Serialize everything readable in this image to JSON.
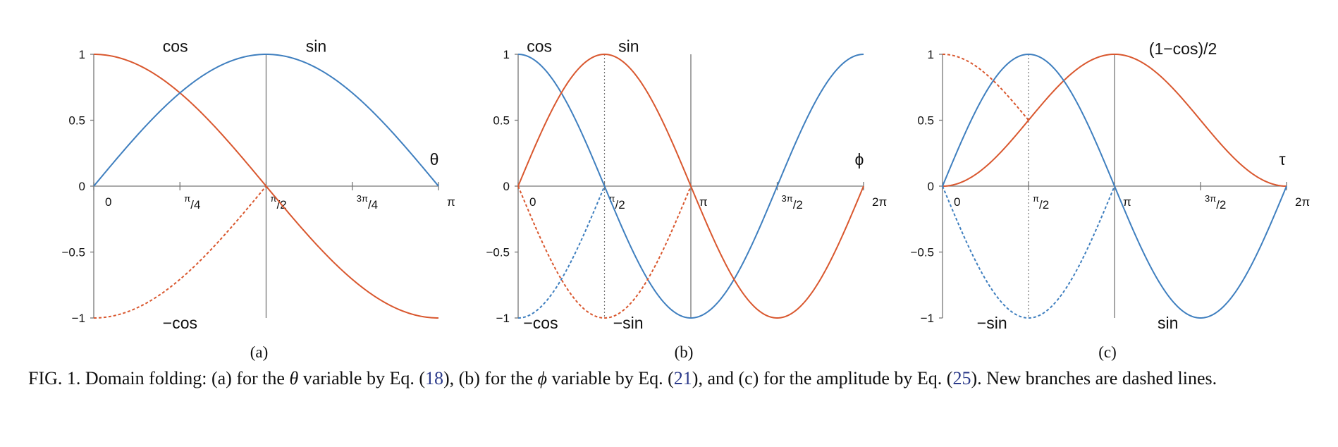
{
  "colors": {
    "blue": "#3f7fbf",
    "orange": "#d9572e",
    "axis": "#777777",
    "ref_link": "#2b3a8a"
  },
  "chart_data": [
    {
      "type": "line",
      "subcaption": "(a)",
      "variable": "θ",
      "xlim_units_of_pi": [
        0,
        1
      ],
      "ylim": [
        -1,
        1
      ],
      "y_ticks": [
        {
          "v": 1,
          "label": "1"
        },
        {
          "v": 0.5,
          "label": "0.5"
        },
        {
          "v": 0,
          "label": "0"
        },
        {
          "v": -0.5,
          "label": "−0.5"
        },
        {
          "v": -1,
          "label": "−1"
        }
      ],
      "x_ticks": [
        {
          "v": 0,
          "label": "0"
        },
        {
          "v": 0.25,
          "label_sup": "π",
          "label_sub": "4"
        },
        {
          "v": 0.5,
          "label_sup": "π",
          "label_sub": "2"
        },
        {
          "v": 0.75,
          "label_sup": "3π",
          "label_sub": "4"
        },
        {
          "v": 1,
          "label": "π"
        }
      ],
      "guides": [
        {
          "x": 0.5,
          "style": "solid"
        }
      ],
      "series": [
        {
          "name": "cos",
          "function": "cos",
          "color": "orange",
          "style": "solid",
          "x_range": [
            0,
            1
          ]
        },
        {
          "name": "sin",
          "function": "sin",
          "color": "blue",
          "style": "solid",
          "x_range": [
            0,
            1
          ]
        },
        {
          "name": "−cos",
          "function": "-cos",
          "color": "orange",
          "style": "dashed",
          "x_range": [
            0,
            0.5
          ]
        }
      ],
      "labels": [
        {
          "text": "cos",
          "x": 0.2,
          "y": 1.02,
          "anchor": "start"
        },
        {
          "text": "sin",
          "x": 0.615,
          "y": 1.02,
          "anchor": "start"
        },
        {
          "text": "−cos",
          "x": 0.2,
          "y": -1.08,
          "anchor": "start"
        }
      ]
    },
    {
      "type": "line",
      "subcaption": "(b)",
      "variable": "ϕ",
      "xlim_units_of_pi": [
        0,
        2
      ],
      "ylim": [
        -1,
        1
      ],
      "y_ticks": [
        {
          "v": 1,
          "label": "1"
        },
        {
          "v": 0.5,
          "label": "0.5"
        },
        {
          "v": 0,
          "label": "0"
        },
        {
          "v": -0.5,
          "label": "−0.5"
        },
        {
          "v": -1,
          "label": "−1"
        }
      ],
      "x_ticks": [
        {
          "v": 0,
          "label": "0"
        },
        {
          "v": 0.5,
          "label_sup": "π",
          "label_sub": "2"
        },
        {
          "v": 1,
          "label": "π"
        },
        {
          "v": 1.5,
          "label_sup": "3π",
          "label_sub": "2"
        },
        {
          "v": 2,
          "label": "2π"
        }
      ],
      "guides": [
        {
          "x": 0.5,
          "style": "dotted"
        },
        {
          "x": 1,
          "style": "solid"
        }
      ],
      "series": [
        {
          "name": "cos",
          "function": "cos",
          "color": "blue",
          "style": "solid",
          "x_range": [
            0,
            2
          ]
        },
        {
          "name": "sin",
          "function": "sin",
          "color": "orange",
          "style": "solid",
          "x_range": [
            0,
            2
          ]
        },
        {
          "name": "−cos",
          "function": "-cos",
          "color": "blue",
          "style": "dashed",
          "x_range": [
            0,
            0.5
          ]
        },
        {
          "name": "−sin",
          "function": "-sin",
          "color": "orange",
          "style": "dashed",
          "x_range": [
            0,
            1
          ]
        }
      ],
      "labels": [
        {
          "text": "cos",
          "x": 0.05,
          "y": 1.02,
          "anchor": "start"
        },
        {
          "text": "sin",
          "x": 0.58,
          "y": 1.02,
          "anchor": "start"
        },
        {
          "text": "−cos",
          "x": 0.03,
          "y": -1.08,
          "anchor": "start"
        },
        {
          "text": "−sin",
          "x": 0.55,
          "y": -1.08,
          "anchor": "start"
        }
      ]
    },
    {
      "type": "line",
      "subcaption": "(c)",
      "variable": "τ",
      "xlim_units_of_pi": [
        0,
        2
      ],
      "ylim": [
        -1,
        1
      ],
      "y_ticks": [
        {
          "v": 1,
          "label": "1"
        },
        {
          "v": 0.5,
          "label": "0.5"
        },
        {
          "v": 0,
          "label": "0"
        },
        {
          "v": -0.5,
          "label": "−0.5"
        },
        {
          "v": -1,
          "label": "−1"
        }
      ],
      "x_ticks": [
        {
          "v": 0,
          "label": "0"
        },
        {
          "v": 0.5,
          "label_sup": "π",
          "label_sub": "2"
        },
        {
          "v": 1,
          "label": "π"
        },
        {
          "v": 1.5,
          "label_sup": "3π",
          "label_sub": "2"
        },
        {
          "v": 2,
          "label": "2π"
        }
      ],
      "guides": [
        {
          "x": 0.5,
          "style": "dotted"
        },
        {
          "x": 1,
          "style": "solid"
        }
      ],
      "series": [
        {
          "name": "(1−cos)/2",
          "function": "half_one_minus_cos",
          "color": "orange",
          "style": "solid",
          "x_range": [
            0,
            2
          ]
        },
        {
          "name": "sin",
          "function": "sin",
          "color": "blue",
          "style": "solid",
          "x_range": [
            0,
            2
          ]
        },
        {
          "name": "(1+cos)/2",
          "function": "half_one_plus_cos",
          "color": "orange",
          "style": "dashed",
          "x_range": [
            0,
            0.5
          ]
        },
        {
          "name": "−sin",
          "function": "-sin",
          "color": "blue",
          "style": "dashed",
          "x_range": [
            0,
            1
          ]
        }
      ],
      "labels": [
        {
          "text": "(1−cos)/2",
          "x": 1.2,
          "y": 1.0,
          "anchor": "start"
        },
        {
          "text": "sin",
          "x": 1.25,
          "y": -1.08,
          "anchor": "start"
        },
        {
          "text": "−sin",
          "x": 0.2,
          "y": -1.08,
          "anchor": "start"
        }
      ]
    }
  ],
  "caption": {
    "part1": "FIG. 1. Domain folding: (a) for the ",
    "theta": "θ",
    "part2": " variable by Eq. (",
    "ref1": "18",
    "part3": "), (b) for the ",
    "phi": "ϕ",
    "part4": " variable by Eq. (",
    "ref2": "21",
    "part5": "), and (c) for the amplitude by Eq. (",
    "ref3": "25",
    "part6": "). New branches are dashed lines."
  }
}
